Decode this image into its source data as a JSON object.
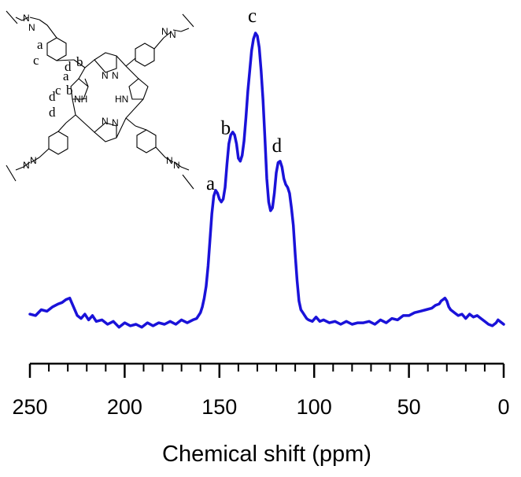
{
  "chart_data": {
    "type": "line",
    "title": "",
    "xlabel": "Chemical shift (ppm)",
    "ylabel": "",
    "xlim": [
      250,
      0
    ],
    "x_reversed": true,
    "ylim": [
      -0.08,
      1.05
    ],
    "grid": false,
    "legend": "none",
    "x_ticks": [
      250,
      200,
      150,
      100,
      50,
      0
    ],
    "x_tick_labels": [
      "250",
      "200",
      "150",
      "100",
      "50",
      "0"
    ],
    "series_color": "#1a12d9",
    "series": [
      {
        "x": [
          250,
          247,
          244,
          241,
          238,
          235,
          233,
          231,
          229,
          227,
          225,
          223,
          221,
          219,
          217,
          215,
          212,
          209,
          206,
          203,
          200,
          197,
          194,
          191,
          188,
          185,
          182,
          179,
          176,
          173,
          170,
          167,
          164,
          162,
          160,
          159,
          158,
          157,
          156,
          155,
          154,
          153,
          152,
          151,
          150,
          149,
          148,
          147,
          146,
          145,
          144,
          143,
          142,
          141,
          140,
          139,
          138,
          137,
          136,
          135,
          134,
          133,
          132,
          131,
          130,
          129,
          128,
          127,
          126,
          125,
          124,
          123,
          122,
          121,
          120,
          119,
          118,
          117,
          116,
          115,
          114,
          113,
          112,
          111,
          110,
          109,
          108,
          107,
          106,
          105,
          104,
          103,
          101,
          99,
          97,
          95,
          92,
          89,
          86,
          83,
          80,
          77,
          74,
          71,
          68,
          65,
          62,
          59,
          56,
          53,
          50,
          47,
          44,
          41,
          38,
          36,
          34,
          33,
          32,
          31,
          30,
          29,
          28,
          26,
          24,
          22,
          20,
          18,
          16,
          14,
          12,
          10,
          8,
          6,
          4,
          3,
          2,
          1,
          0
        ],
        "y": [
          0.035,
          0.03,
          0.05,
          0.045,
          0.06,
          0.07,
          0.075,
          0.085,
          0.09,
          0.06,
          0.03,
          0.02,
          0.035,
          0.015,
          0.03,
          0.01,
          0.015,
          0.0,
          0.01,
          -0.01,
          0.005,
          -0.005,
          0.0,
          -0.01,
          0.005,
          -0.005,
          0.005,
          0.0,
          0.01,
          0.0,
          0.015,
          0.005,
          0.015,
          0.02,
          0.04,
          0.06,
          0.09,
          0.13,
          0.2,
          0.29,
          0.38,
          0.44,
          0.46,
          0.45,
          0.43,
          0.42,
          0.43,
          0.47,
          0.55,
          0.62,
          0.65,
          0.66,
          0.65,
          0.62,
          0.57,
          0.56,
          0.58,
          0.63,
          0.71,
          0.8,
          0.87,
          0.94,
          0.98,
          1.0,
          0.99,
          0.95,
          0.87,
          0.77,
          0.64,
          0.5,
          0.42,
          0.39,
          0.4,
          0.45,
          0.52,
          0.555,
          0.56,
          0.54,
          0.5,
          0.48,
          0.47,
          0.45,
          0.4,
          0.34,
          0.24,
          0.15,
          0.08,
          0.05,
          0.04,
          0.03,
          0.02,
          0.015,
          0.01,
          0.025,
          0.01,
          0.015,
          0.005,
          0.01,
          0.0,
          0.01,
          0.0,
          0.005,
          0.005,
          0.01,
          0.0,
          0.015,
          0.005,
          0.02,
          0.015,
          0.03,
          0.03,
          0.04,
          0.045,
          0.05,
          0.055,
          0.065,
          0.07,
          0.08,
          0.085,
          0.09,
          0.08,
          0.06,
          0.05,
          0.04,
          0.03,
          0.035,
          0.02,
          0.035,
          0.025,
          0.03,
          0.02,
          0.01,
          0.0,
          -0.005,
          0.005,
          0.015,
          0.01,
          0.005,
          0.0
        ]
      }
    ],
    "annotations": [
      {
        "text": "a",
        "x": 153
      },
      {
        "text": "b",
        "x": 145
      },
      {
        "text": "c",
        "x": 131
      },
      {
        "text": "d",
        "x": 118
      }
    ]
  },
  "structure": {
    "ring_labels": [
      "a",
      "b",
      "c",
      "d",
      "a",
      "b",
      "c",
      "d",
      "d"
    ],
    "nh_labels": [
      "NH",
      "HN"
    ],
    "n_labels": [
      "N",
      "N",
      "N",
      "N",
      "N",
      "N",
      "N",
      "N",
      "N",
      "N",
      "N",
      "N"
    ]
  }
}
